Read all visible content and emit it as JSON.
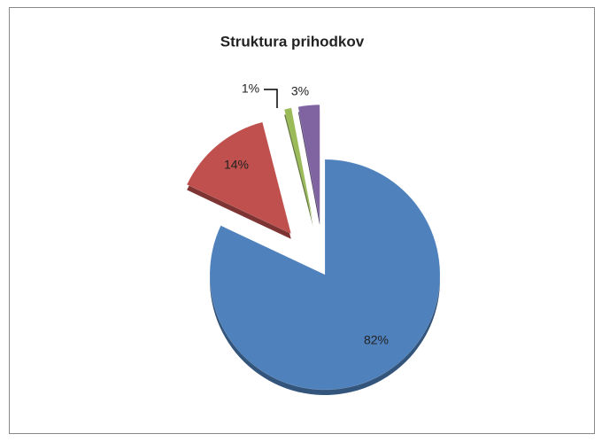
{
  "chart_data": {
    "type": "pie",
    "title": "Struktura prihodkov",
    "values": [
      82,
      14,
      1,
      3
    ],
    "value_labels": [
      "82%",
      "14%",
      "1%",
      "3%"
    ],
    "colors": [
      "#4f81bd",
      "#c0504d",
      "#9bbb59",
      "#8064a2"
    ]
  }
}
